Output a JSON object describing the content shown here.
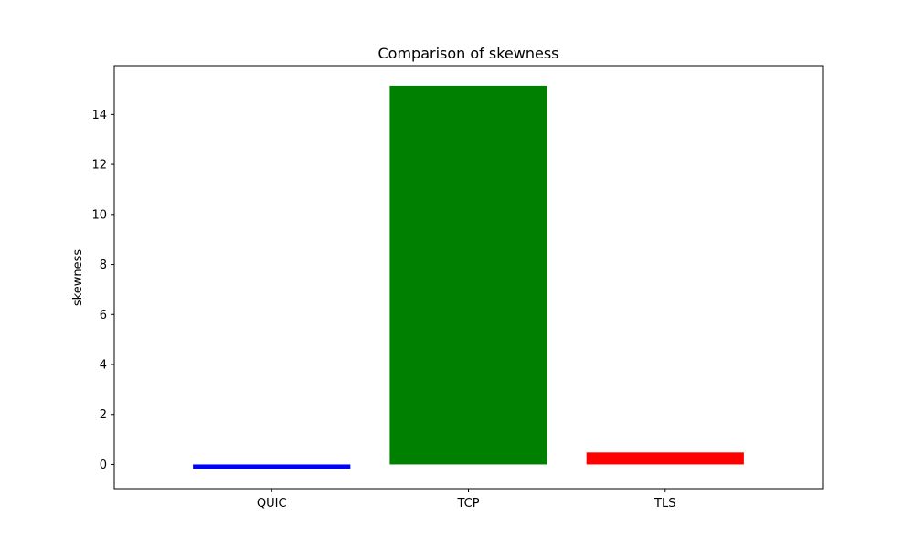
{
  "chart_data": {
    "type": "bar",
    "title": "Comparison of skewness",
    "xlabel": "",
    "ylabel": "skewness",
    "categories": [
      "QUIC",
      "TCP",
      "TLS"
    ],
    "values": [
      -0.18,
      15.15,
      0.48
    ],
    "colors": [
      "#0000ff",
      "#008000",
      "#ff0000"
    ],
    "ylim": [
      -0.97,
      15.95
    ],
    "yticks": [
      0,
      2,
      4,
      6,
      8,
      10,
      12,
      14
    ],
    "ytick_labels": [
      "0",
      "2",
      "4",
      "6",
      "8",
      "10",
      "12",
      "14"
    ],
    "grid": false,
    "legend": null
  }
}
